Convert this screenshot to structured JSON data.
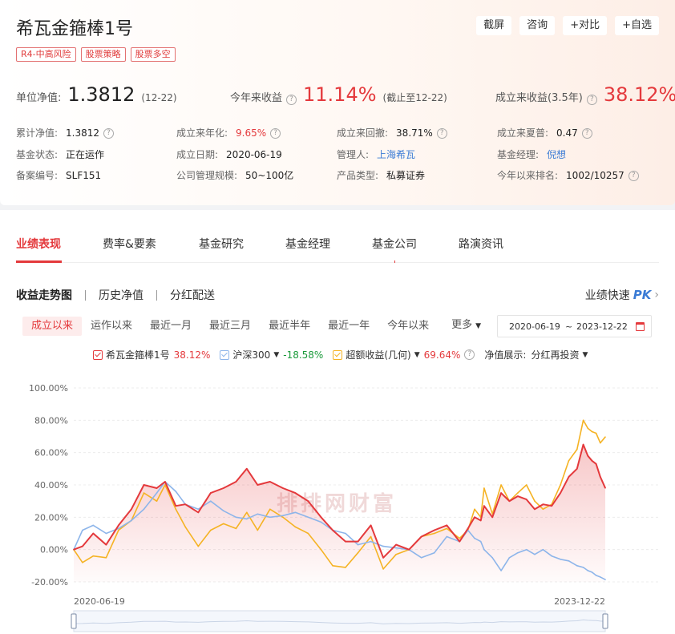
{
  "fund": {
    "name": "希瓦金箍棒1号",
    "tags": [
      "R4-中高风险",
      "股票策略",
      "股票多空"
    ]
  },
  "top_buttons": [
    "截屏",
    "咨询",
    "+对比",
    "+自选"
  ],
  "main_row": {
    "nav_label": "单位净值:",
    "nav_value": "1.3812",
    "nav_date": "(12-22)",
    "ytd_label": "今年来收益",
    "ytd_value": "11.14%",
    "ytd_note": "(截止至12-22)",
    "since_label": "成立来收益(3.5年)",
    "since_value": "38.12%"
  },
  "info": {
    "rows": [
      [
        {
          "label": "累计净值:",
          "value": "1.3812",
          "help": true
        },
        {
          "label": "成立来年化:",
          "value": "9.65%",
          "help": true,
          "style": "red"
        },
        {
          "label": "成立来回撤:",
          "value": "38.71%",
          "help": true
        },
        {
          "label": "成立来夏普:",
          "value": "0.47",
          "help": true
        }
      ],
      [
        {
          "label": "基金状态:",
          "value": "正在运作"
        },
        {
          "label": "成立日期:",
          "value": "2020-06-19"
        },
        {
          "label": "管理人:",
          "value": "上海希瓦",
          "style": "link"
        },
        {
          "label": "基金经理:",
          "value": "倪想",
          "style": "link"
        }
      ],
      [
        {
          "label": "备案编号:",
          "value": "SLF151"
        },
        {
          "label": "公司管理规模:",
          "value": "50~100亿"
        },
        {
          "label": "产品类型:",
          "value": "私募证券"
        },
        {
          "label": "今年以来排名:",
          "value": "1002/10257",
          "help": true
        }
      ]
    ]
  },
  "tabs": [
    "业绩表现",
    "费率&要素",
    "基金研究",
    "基金经理",
    "基金公司",
    "路演资讯"
  ],
  "subnav": [
    "收益走势图",
    "历史净值",
    "分红配送"
  ],
  "pk": {
    "label": "业绩快速",
    "badge": "PK"
  },
  "ranges": [
    "成立以来",
    "运作以来",
    "最近一月",
    "最近三月",
    "最近半年",
    "最近一年",
    "今年以来",
    "更多"
  ],
  "date_range": {
    "start": "2020-06-19",
    "sep": "~",
    "end": "2023-12-22"
  },
  "legend": {
    "items": [
      {
        "name": "希瓦金箍棒1号",
        "value": "38.12%",
        "color": "#e4393c",
        "value_color": "#e4393c",
        "dropdown": false
      },
      {
        "name": "沪深300",
        "value": "-18.58%",
        "color": "#8db5ea",
        "value_color": "#1a9a3a",
        "dropdown": true
      },
      {
        "name": "超额收益(几何)",
        "value": "69.64%",
        "color": "#f5b324",
        "value_color": "#e4393c",
        "dropdown": true
      }
    ],
    "display_label": "净值展示:",
    "display_value": "分红再投资"
  },
  "watermark": "排排网财富",
  "chart_data": {
    "type": "line",
    "y_unit": "%",
    "ylim": [
      -20,
      100
    ],
    "y_ticks": [
      100,
      80,
      60,
      40,
      20,
      0,
      -20
    ],
    "y_tick_labels": [
      "100.00%",
      "80.00%",
      "60.00%",
      "40.00%",
      "20.00%",
      "0.00%",
      "-20.00%"
    ],
    "x_tick_labels": [
      "2020-06-19",
      "2023-12-22"
    ],
    "x_start": "2020-06-19",
    "x_end": "2023-12-22",
    "series": [
      {
        "name": "超额收益(几何)",
        "color": "#f5b324",
        "points": [
          [
            "2020-06-19",
            0
          ],
          [
            "2020-07-10",
            -8
          ],
          [
            "2020-08-05",
            -4
          ],
          [
            "2020-09-05",
            -5
          ],
          [
            "2020-10-05",
            12
          ],
          [
            "2020-11-05",
            18
          ],
          [
            "2020-12-05",
            35
          ],
          [
            "2021-01-05",
            30
          ],
          [
            "2021-01-25",
            40
          ],
          [
            "2021-02-20",
            25
          ],
          [
            "2021-03-15",
            14
          ],
          [
            "2021-04-15",
            2
          ],
          [
            "2021-05-15",
            12
          ],
          [
            "2021-06-15",
            16
          ],
          [
            "2021-07-15",
            13
          ],
          [
            "2021-08-10",
            23
          ],
          [
            "2021-09-05",
            12
          ],
          [
            "2021-10-05",
            25
          ],
          [
            "2021-11-05",
            20
          ],
          [
            "2021-12-05",
            14
          ],
          [
            "2022-01-05",
            10
          ],
          [
            "2022-02-05",
            0
          ],
          [
            "2022-03-05",
            -10
          ],
          [
            "2022-04-05",
            -11
          ],
          [
            "2022-05-05",
            -2
          ],
          [
            "2022-06-05",
            8
          ],
          [
            "2022-07-05",
            -12
          ],
          [
            "2022-08-05",
            -3
          ],
          [
            "2022-09-05",
            0
          ],
          [
            "2022-10-05",
            8
          ],
          [
            "2022-11-05",
            10
          ],
          [
            "2022-12-05",
            13
          ],
          [
            "2023-01-05",
            7
          ],
          [
            "2023-01-25",
            12
          ],
          [
            "2023-02-10",
            25
          ],
          [
            "2023-02-25",
            20
          ],
          [
            "2023-03-05",
            38
          ],
          [
            "2023-03-25",
            22
          ],
          [
            "2023-04-15",
            40
          ],
          [
            "2023-05-05",
            30
          ],
          [
            "2023-05-25",
            35
          ],
          [
            "2023-06-15",
            40
          ],
          [
            "2023-07-05",
            30
          ],
          [
            "2023-07-25",
            25
          ],
          [
            "2023-08-15",
            28
          ],
          [
            "2023-09-05",
            40
          ],
          [
            "2023-09-25",
            55
          ],
          [
            "2023-10-15",
            62
          ],
          [
            "2023-10-30",
            80
          ],
          [
            "2023-11-10",
            75
          ],
          [
            "2023-11-20",
            73
          ],
          [
            "2023-11-30",
            72
          ],
          [
            "2023-12-10",
            66
          ],
          [
            "2023-12-22",
            69.64
          ]
        ]
      },
      {
        "name": "沪深300",
        "color": "#8db5ea",
        "points": [
          [
            "2020-06-19",
            0
          ],
          [
            "2020-07-10",
            12
          ],
          [
            "2020-08-05",
            15
          ],
          [
            "2020-09-05",
            10
          ],
          [
            "2020-10-05",
            13
          ],
          [
            "2020-11-05",
            18
          ],
          [
            "2020-12-05",
            25
          ],
          [
            "2021-01-05",
            35
          ],
          [
            "2021-01-25",
            42
          ],
          [
            "2021-02-20",
            36
          ],
          [
            "2021-03-15",
            28
          ],
          [
            "2021-04-15",
            25
          ],
          [
            "2021-05-15",
            30
          ],
          [
            "2021-06-15",
            24
          ],
          [
            "2021-07-15",
            20
          ],
          [
            "2021-08-10",
            19
          ],
          [
            "2021-09-05",
            22
          ],
          [
            "2021-10-05",
            20
          ],
          [
            "2021-11-05",
            21
          ],
          [
            "2021-12-05",
            23
          ],
          [
            "2022-01-05",
            20
          ],
          [
            "2022-02-05",
            17
          ],
          [
            "2022-03-05",
            12
          ],
          [
            "2022-04-05",
            10
          ],
          [
            "2022-05-05",
            3
          ],
          [
            "2022-06-05",
            5
          ],
          [
            "2022-07-05",
            2
          ],
          [
            "2022-08-05",
            1
          ],
          [
            "2022-09-05",
            0
          ],
          [
            "2022-10-05",
            -5
          ],
          [
            "2022-11-05",
            -2
          ],
          [
            "2022-12-05",
            8
          ],
          [
            "2023-01-05",
            5
          ],
          [
            "2023-01-25",
            12
          ],
          [
            "2023-02-10",
            7
          ],
          [
            "2023-02-25",
            5
          ],
          [
            "2023-03-05",
            0
          ],
          [
            "2023-03-25",
            -5
          ],
          [
            "2023-04-15",
            -13
          ],
          [
            "2023-05-05",
            -5
          ],
          [
            "2023-05-25",
            -2
          ],
          [
            "2023-06-15",
            0
          ],
          [
            "2023-07-05",
            -3
          ],
          [
            "2023-07-25",
            0
          ],
          [
            "2023-08-15",
            -4
          ],
          [
            "2023-09-05",
            -6
          ],
          [
            "2023-09-25",
            -7
          ],
          [
            "2023-10-15",
            -10
          ],
          [
            "2023-10-30",
            -11
          ],
          [
            "2023-11-10",
            -13
          ],
          [
            "2023-11-20",
            -14
          ],
          [
            "2023-11-30",
            -16
          ],
          [
            "2023-12-10",
            -17
          ],
          [
            "2023-12-22",
            -18.58
          ]
        ]
      },
      {
        "name": "希瓦金箍棒1号",
        "color": "#e4393c",
        "points": [
          [
            "2020-06-19",
            0
          ],
          [
            "2020-07-10",
            2
          ],
          [
            "2020-08-05",
            10
          ],
          [
            "2020-09-05",
            3
          ],
          [
            "2020-10-05",
            15
          ],
          [
            "2020-11-05",
            25
          ],
          [
            "2020-12-05",
            40
          ],
          [
            "2021-01-05",
            38
          ],
          [
            "2021-01-25",
            42
          ],
          [
            "2021-02-20",
            27
          ],
          [
            "2021-03-15",
            28
          ],
          [
            "2021-04-15",
            23
          ],
          [
            "2021-05-15",
            35
          ],
          [
            "2021-06-15",
            38
          ],
          [
            "2021-07-15",
            42
          ],
          [
            "2021-08-10",
            50
          ],
          [
            "2021-09-05",
            40
          ],
          [
            "2021-10-05",
            42
          ],
          [
            "2021-11-05",
            38
          ],
          [
            "2021-12-05",
            35
          ],
          [
            "2022-01-05",
            30
          ],
          [
            "2022-02-05",
            20
          ],
          [
            "2022-03-05",
            12
          ],
          [
            "2022-04-05",
            5
          ],
          [
            "2022-05-05",
            5
          ],
          [
            "2022-06-05",
            15
          ],
          [
            "2022-07-05",
            -5
          ],
          [
            "2022-08-05",
            3
          ],
          [
            "2022-09-05",
            0
          ],
          [
            "2022-10-05",
            8
          ],
          [
            "2022-11-05",
            12
          ],
          [
            "2022-12-05",
            15
          ],
          [
            "2023-01-05",
            5
          ],
          [
            "2023-01-25",
            13
          ],
          [
            "2023-02-10",
            20
          ],
          [
            "2023-02-25",
            18
          ],
          [
            "2023-03-05",
            27
          ],
          [
            "2023-03-25",
            20
          ],
          [
            "2023-04-15",
            35
          ],
          [
            "2023-05-05",
            30
          ],
          [
            "2023-05-25",
            33
          ],
          [
            "2023-06-15",
            31
          ],
          [
            "2023-07-05",
            25
          ],
          [
            "2023-07-25",
            28
          ],
          [
            "2023-08-15",
            27
          ],
          [
            "2023-09-05",
            35
          ],
          [
            "2023-09-25",
            45
          ],
          [
            "2023-10-15",
            50
          ],
          [
            "2023-10-30",
            65
          ],
          [
            "2023-11-10",
            58
          ],
          [
            "2023-11-20",
            55
          ],
          [
            "2023-11-30",
            53
          ],
          [
            "2023-12-10",
            45
          ],
          [
            "2023-12-22",
            38.12
          ]
        ]
      }
    ]
  }
}
